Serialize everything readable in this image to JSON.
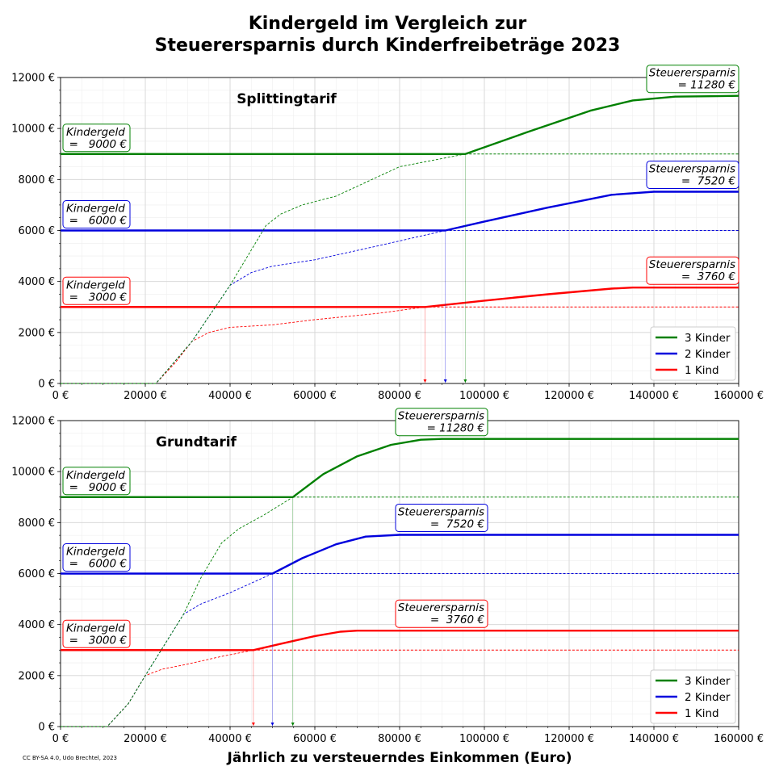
{
  "title_line1": "Kindergeld im Vergleich zur",
  "title_line2": "Steuerersparnis durch Kinderfreibeträge 2023",
  "xlabel": "Jährlich zu versteuerndes Einkommen (Euro)",
  "credit": "CC BY-SA 4.0, Udo Brechtel, 2023",
  "colors": {
    "3": "#008000",
    "2": "#0000dd",
    "1": "#ff0000"
  },
  "chart_data": [
    {
      "type": "line",
      "title": "Splittingtarif",
      "xlim": [
        0,
        160000
      ],
      "ylim": [
        0,
        12000
      ],
      "xticks": [
        0,
        20000,
        40000,
        60000,
        80000,
        100000,
        120000,
        140000,
        160000
      ],
      "xtick_labels": [
        "0 €",
        "20000 €",
        "40000 €",
        "60000 €",
        "80000 €",
        "100000 €",
        "120000 €",
        "140000 €",
        "160000 €"
      ],
      "yticks": [
        0,
        2000,
        4000,
        6000,
        8000,
        10000,
        12000
      ],
      "ytick_labels": [
        "0 €",
        "2000 €",
        "4000 €",
        "6000 €",
        "8000 €",
        "10000 €",
        "12000 €"
      ],
      "grid": true,
      "legend_position": "lower-right",
      "legend": [
        "3 Kinder",
        "2 Kinder",
        "1 Kind"
      ],
      "series": [
        {
          "name": "3 Kinder",
          "kids": "3",
          "kindergeld": 9000,
          "breakeven": 95500,
          "savings": [
            [
              0,
              0
            ],
            [
              22500,
              0
            ],
            [
              31000,
              1650
            ],
            [
              40000,
              3850
            ],
            [
              48500,
              6200
            ],
            [
              52000,
              6650
            ],
            [
              57000,
              7000
            ],
            [
              65000,
              7350
            ],
            [
              80000,
              8500
            ],
            [
              95500,
              9000
            ],
            [
              110000,
              9850
            ],
            [
              125000,
              10700
            ],
            [
              135000,
              11100
            ],
            [
              145000,
              11250
            ],
            [
              160000,
              11280
            ]
          ]
        },
        {
          "name": "2 Kinder",
          "kids": "2",
          "kindergeld": 6000,
          "breakeven": 90800,
          "savings": [
            [
              0,
              0
            ],
            [
              22500,
              0
            ],
            [
              31000,
              1650
            ],
            [
              40000,
              3850
            ],
            [
              45000,
              4350
            ],
            [
              50000,
              4600
            ],
            [
              60000,
              4850
            ],
            [
              75000,
              5400
            ],
            [
              90800,
              6000
            ],
            [
              100000,
              6350
            ],
            [
              115000,
              6900
            ],
            [
              130000,
              7400
            ],
            [
              140000,
              7520
            ],
            [
              160000,
              7520
            ]
          ]
        },
        {
          "name": "1 Kind",
          "kids": "1",
          "kindergeld": 3000,
          "breakeven": 86000,
          "savings": [
            [
              0,
              0
            ],
            [
              22500,
              0
            ],
            [
              27000,
              800
            ],
            [
              31000,
              1650
            ],
            [
              35000,
              2000
            ],
            [
              40000,
              2200
            ],
            [
              50000,
              2300
            ],
            [
              60000,
              2500
            ],
            [
              75000,
              2750
            ],
            [
              86000,
              3000
            ],
            [
              100000,
              3250
            ],
            [
              115000,
              3500
            ],
            [
              130000,
              3720
            ],
            [
              135000,
              3760
            ],
            [
              160000,
              3760
            ]
          ]
        }
      ],
      "annotations": [
        {
          "kids": "3",
          "kindergeld_label": "Kindergeld",
          "kindergeld_value": "=   9000 €",
          "savings_label": "Steuerersparnis",
          "savings_value": "= 11280 €"
        },
        {
          "kids": "2",
          "kindergeld_label": "Kindergeld",
          "kindergeld_value": "=   6000 €",
          "savings_label": "Steuerersparnis",
          "savings_value": "=  7520 €"
        },
        {
          "kids": "1",
          "kindergeld_label": "Kindergeld",
          "kindergeld_value": "=   3000 €",
          "savings_label": "Steuerersparnis",
          "savings_value": "=  3760 €"
        }
      ]
    },
    {
      "type": "line",
      "title": "Grundtarif",
      "xlim": [
        0,
        160000
      ],
      "ylim": [
        0,
        12000
      ],
      "xticks": [
        0,
        20000,
        40000,
        60000,
        80000,
        100000,
        120000,
        140000,
        160000
      ],
      "xtick_labels": [
        "0 €",
        "20000 €",
        "40000 €",
        "60000 €",
        "80000 €",
        "100000 €",
        "120000 €",
        "140000 €",
        "160000 €"
      ],
      "yticks": [
        0,
        2000,
        4000,
        6000,
        8000,
        10000,
        12000
      ],
      "ytick_labels": [
        "0 €",
        "2000 €",
        "4000 €",
        "6000 €",
        "8000 €",
        "10000 €",
        "12000 €"
      ],
      "grid": true,
      "legend_position": "lower-right",
      "legend": [
        "3 Kinder",
        "2 Kinder",
        "1 Kind"
      ],
      "series": [
        {
          "name": "3 Kinder",
          "kids": "3",
          "kindergeld": 9000,
          "breakeven": 54800,
          "savings": [
            [
              0,
              0
            ],
            [
              11000,
              0
            ],
            [
              16000,
              900
            ],
            [
              20000,
              2000
            ],
            [
              29000,
              4400
            ],
            [
              33000,
              5800
            ],
            [
              38000,
              7200
            ],
            [
              42000,
              7750
            ],
            [
              48000,
              8300
            ],
            [
              54800,
              9000
            ],
            [
              62000,
              9900
            ],
            [
              70000,
              10600
            ],
            [
              78000,
              11050
            ],
            [
              85000,
              11250
            ],
            [
              90000,
              11280
            ],
            [
              160000,
              11280
            ]
          ]
        },
        {
          "name": "2 Kinder",
          "kids": "2",
          "kindergeld": 6000,
          "breakeven": 50000,
          "savings": [
            [
              0,
              0
            ],
            [
              11000,
              0
            ],
            [
              16000,
              900
            ],
            [
              20000,
              2000
            ],
            [
              29000,
              4400
            ],
            [
              33000,
              4800
            ],
            [
              40000,
              5250
            ],
            [
              50000,
              6000
            ],
            [
              57000,
              6600
            ],
            [
              65000,
              7150
            ],
            [
              72000,
              7450
            ],
            [
              80000,
              7520
            ],
            [
              160000,
              7520
            ]
          ]
        },
        {
          "name": "1 Kind",
          "kids": "1",
          "kindergeld": 3000,
          "breakeven": 45500,
          "savings": [
            [
              0,
              0
            ],
            [
              11000,
              0
            ],
            [
              16000,
              900
            ],
            [
              20000,
              2000
            ],
            [
              24000,
              2250
            ],
            [
              30000,
              2450
            ],
            [
              38000,
              2750
            ],
            [
              45500,
              3000
            ],
            [
              52000,
              3250
            ],
            [
              60000,
              3550
            ],
            [
              66000,
              3720
            ],
            [
              70000,
              3760
            ],
            [
              160000,
              3760
            ]
          ]
        }
      ],
      "annotations": [
        {
          "kids": "3",
          "kindergeld_label": "Kindergeld",
          "kindergeld_value": "=   9000 €",
          "savings_label": "Steuerersparnis",
          "savings_value": "= 11280 €"
        },
        {
          "kids": "2",
          "kindergeld_label": "Kindergeld",
          "kindergeld_value": "=   6000 €",
          "savings_label": "Steuerersparnis",
          "savings_value": "=  7520 €"
        },
        {
          "kids": "1",
          "kindergeld_label": "Kindergeld",
          "kindergeld_value": "=   3000 €",
          "savings_label": "Steuerersparnis",
          "savings_value": "=  3760 €"
        }
      ]
    }
  ]
}
